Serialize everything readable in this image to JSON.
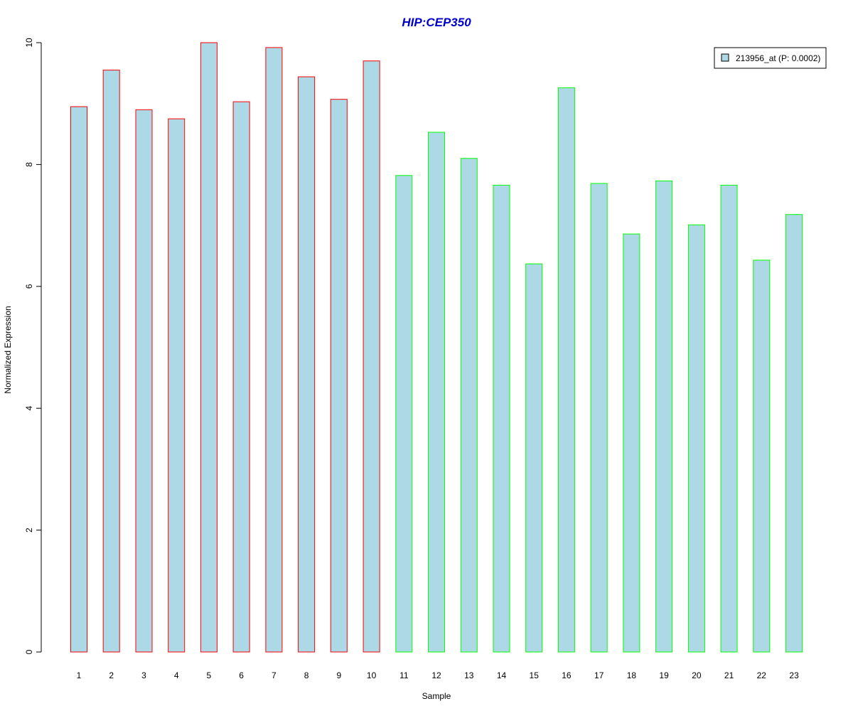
{
  "chart_data": {
    "type": "bar",
    "title": "HIP:CEP350",
    "xlabel": "Sample",
    "ylabel": "Normalized Expression",
    "categories": [
      "1",
      "2",
      "3",
      "4",
      "5",
      "6",
      "7",
      "8",
      "9",
      "10",
      "11",
      "12",
      "13",
      "14",
      "15",
      "16",
      "17",
      "18",
      "19",
      "20",
      "21",
      "22",
      "23"
    ],
    "series": [
      {
        "name": "213956_at (P: 0.0002)",
        "values": [
          8.95,
          9.55,
          8.9,
          8.75,
          10.0,
          9.03,
          9.92,
          9.44,
          9.07,
          9.7,
          7.82,
          8.53,
          8.1,
          7.66,
          6.37,
          9.26,
          7.69,
          6.86,
          7.73,
          7.01,
          7.66,
          6.43,
          7.18
        ]
      }
    ],
    "group_of_sample": [
      "red",
      "red",
      "red",
      "red",
      "red",
      "red",
      "red",
      "red",
      "red",
      "red",
      "green",
      "green",
      "green",
      "green",
      "green",
      "green",
      "green",
      "green",
      "green",
      "green",
      "green",
      "green",
      "green"
    ],
    "ylim": [
      0,
      10
    ],
    "yticks": [
      0,
      2,
      4,
      6,
      8,
      10
    ],
    "grid": false,
    "legend_position": "top-right",
    "colors": {
      "bar_fill": "#add8e6",
      "red": "#ff0000",
      "green": "#00ff00",
      "title": "#0000cc"
    }
  }
}
